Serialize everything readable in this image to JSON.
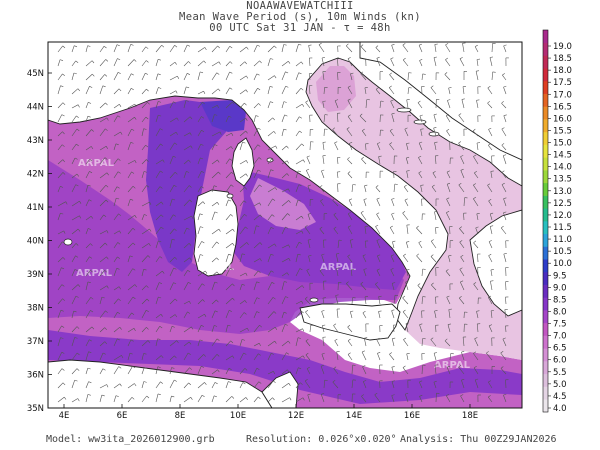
{
  "header": {
    "line1": "NOAAWAVEWATCHIII",
    "line2": "Mean Wave Period (s), 10m Winds (kn)",
    "line3": "00 UTC Sat 31 JAN  -  τ = 48h"
  },
  "map": {
    "lon_ticks": [
      "4E",
      "6E",
      "8E",
      "10E",
      "12E",
      "14E",
      "16E",
      "18E"
    ],
    "lat_ticks": [
      "35N",
      "36N",
      "37N",
      "38N",
      "39N",
      "40N",
      "41N",
      "42N",
      "43N",
      "44N",
      "45N"
    ],
    "watermark": "ARPAL"
  },
  "colorbar": {
    "labels": [
      "4.0",
      "4.5",
      "5.0",
      "5.5",
      "6.0",
      "6.5",
      "7.0",
      "7.5",
      "8.0",
      "8.5",
      "9.0",
      "9.5",
      "10.0",
      "10.5",
      "11.0",
      "11.5",
      "12.0",
      "12.5",
      "13.0",
      "13.5",
      "14.0",
      "14.5",
      "15.0",
      "15.5",
      "16.0",
      "16.5",
      "17.0",
      "17.5",
      "18.0",
      "18.5",
      "19.0"
    ],
    "colors": [
      "#ebe6eb",
      "#e4d4e4",
      "#dcbfdc",
      "#d8a8d8",
      "#d48fd4",
      "#cd72cd",
      "#c257c2",
      "#a545c8",
      "#8636c8",
      "#6a2dc0",
      "#4a2cc0",
      "#2e3cc8",
      "#2c70d6",
      "#2ca4da",
      "#28c0c0",
      "#26bc8e",
      "#38c060",
      "#68cc3a",
      "#9cd83a",
      "#c6e03c",
      "#e6e43e",
      "#f0ce34",
      "#f0ac2c",
      "#ea8a26",
      "#e46422",
      "#de3e22",
      "#d02a3a",
      "#c02a56",
      "#b42c74",
      "#a82a8c"
    ]
  },
  "footer": {
    "model_label": "Model:",
    "model_value": "ww3ita_2026012900.grb",
    "resolution_label": "Resolution:",
    "resolution_value": "0.026°x0.020°",
    "analysis_label": "Analysis:",
    "analysis_value": "Thu 00Z29JAN2026"
  }
}
